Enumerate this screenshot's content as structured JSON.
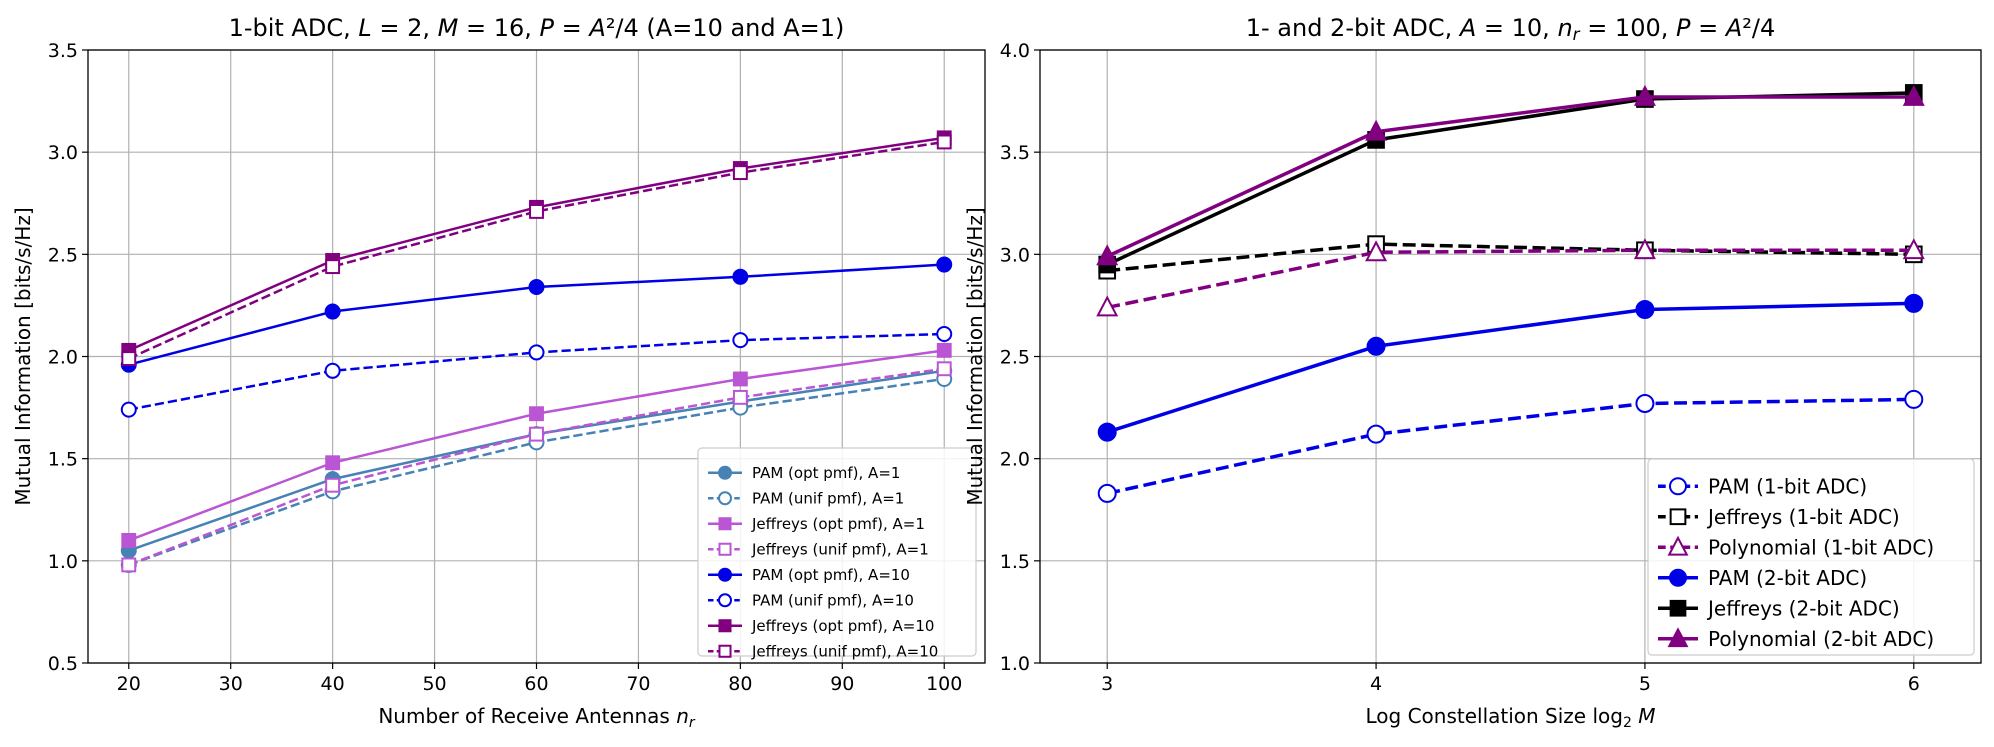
{
  "chart_data": [
    {
      "type": "line",
      "title": "1-bit ADC, L = 2, M = 16, P = A²/4 (A=10 and A=1)",
      "title_parts": [
        "1-bit ADC, ",
        "L",
        " = 2, ",
        "M",
        " = 16, ",
        "P",
        " = ",
        "A",
        "²/4 (A=10 and A=1)"
      ],
      "xlabel": "Number of Receive Antennas nr",
      "xlabel_parts": [
        "Number of Receive Antennas ",
        "n",
        "r"
      ],
      "ylabel": "Mutual Information [bits/s/Hz]",
      "xlim": [
        16,
        104
      ],
      "ylim": [
        0.5,
        3.5
      ],
      "xticks": [
        20,
        30,
        40,
        50,
        60,
        70,
        80,
        90,
        100
      ],
      "xtick_labels": [
        "20",
        "30",
        "40",
        "50",
        "60",
        "70",
        "80",
        "90",
        "100"
      ],
      "yticks": [
        0.5,
        1.0,
        1.5,
        2.0,
        2.5,
        3.0,
        3.5
      ],
      "ytick_labels": [
        "0.5",
        "1.0",
        "1.5",
        "2.0",
        "2.5",
        "3.0",
        "3.5"
      ],
      "grid": true,
      "legend_position": "lower-right",
      "x": [
        20,
        40,
        60,
        80,
        100
      ],
      "series": [
        {
          "name": "PAM (opt pmf), A=1",
          "values": [
            1.05,
            1.4,
            1.62,
            1.78,
            1.93
          ],
          "color": "#4682b4",
          "marker": "circle",
          "filled": true,
          "dashed": false
        },
        {
          "name": "PAM (unif pmf), A=1",
          "values": [
            0.98,
            1.34,
            1.58,
            1.75,
            1.89
          ],
          "color": "#4682b4",
          "marker": "circle",
          "filled": false,
          "dashed": true
        },
        {
          "name": "Jeffreys (opt pmf), A=1",
          "values": [
            1.1,
            1.48,
            1.72,
            1.89,
            2.03
          ],
          "color": "#ba55d3",
          "marker": "square",
          "filled": true,
          "dashed": false
        },
        {
          "name": "Jeffreys (unif pmf), A=1",
          "values": [
            0.98,
            1.37,
            1.62,
            1.8,
            1.94
          ],
          "color": "#ba55d3",
          "marker": "square",
          "filled": false,
          "dashed": true
        },
        {
          "name": "PAM (opt pmf), A=10",
          "values": [
            1.96,
            2.22,
            2.34,
            2.39,
            2.45
          ],
          "color": "#0000e6",
          "marker": "circle",
          "filled": true,
          "dashed": false
        },
        {
          "name": "PAM (unif pmf), A=10",
          "values": [
            1.74,
            1.93,
            2.02,
            2.08,
            2.11
          ],
          "color": "#0000e6",
          "marker": "circle",
          "filled": false,
          "dashed": true
        },
        {
          "name": "Jeffreys (opt pmf), A=10",
          "values": [
            2.03,
            2.47,
            2.73,
            2.92,
            3.07
          ],
          "color": "#800080",
          "marker": "square",
          "filled": true,
          "dashed": false
        },
        {
          "name": "Jeffreys (unif pmf), A=10",
          "values": [
            1.99,
            2.44,
            2.71,
            2.9,
            3.05
          ],
          "color": "#800080",
          "marker": "square",
          "filled": false,
          "dashed": true
        }
      ]
    },
    {
      "type": "line",
      "title": "1- and 2-bit ADC, A = 10, nr = 100, P = A²/4",
      "title_parts": [
        "1- and 2-bit ADC, ",
        "A",
        " = 10, ",
        "n",
        "r",
        " = 100, ",
        "P",
        " = ",
        "A",
        "²/4"
      ],
      "xlabel": "Log Constellation Size log2 M",
      "xlabel_parts": [
        "Log Constellation Size log",
        "2",
        " ",
        "M"
      ],
      "ylabel": "Mutual Information [bits/s/Hz]",
      "xlim": [
        2.75,
        6.25
      ],
      "ylim": [
        1.0,
        4.0
      ],
      "xticks": [
        3,
        4,
        5,
        6
      ],
      "xtick_labels": [
        "3",
        "4",
        "5",
        "6"
      ],
      "yticks": [
        1.0,
        1.5,
        2.0,
        2.5,
        3.0,
        3.5,
        4.0
      ],
      "ytick_labels": [
        "1.0",
        "1.5",
        "2.0",
        "2.5",
        "3.0",
        "3.5",
        "4.0"
      ],
      "grid": true,
      "legend_position": "lower-right",
      "x": [
        3,
        4,
        5,
        6
      ],
      "series": [
        {
          "name": "PAM (1-bit ADC)",
          "values": [
            1.83,
            2.12,
            2.27,
            2.29
          ],
          "color": "#0000e6",
          "marker": "circle",
          "filled": false,
          "dashed": true
        },
        {
          "name": "Jeffreys (1-bit ADC)",
          "values": [
            2.92,
            3.05,
            3.02,
            3.0
          ],
          "color": "#000000",
          "marker": "square",
          "filled": false,
          "dashed": true
        },
        {
          "name": "Polynomial (1-bit ADC)",
          "values": [
            2.74,
            3.01,
            3.02,
            3.02
          ],
          "color": "#800080",
          "marker": "triangle",
          "filled": false,
          "dashed": true
        },
        {
          "name": "PAM (2-bit ADC)",
          "values": [
            2.13,
            2.55,
            2.73,
            2.76
          ],
          "color": "#0000e6",
          "marker": "circle",
          "filled": true,
          "dashed": false
        },
        {
          "name": "Jeffreys (2-bit ADC)",
          "values": [
            2.95,
            3.56,
            3.76,
            3.79
          ],
          "color": "#000000",
          "marker": "square",
          "filled": true,
          "dashed": false
        },
        {
          "name": "Polynomial (2-bit ADC)",
          "values": [
            2.99,
            3.6,
            3.77,
            3.77
          ],
          "color": "#800080",
          "marker": "triangle",
          "filled": true,
          "dashed": false
        }
      ]
    }
  ]
}
